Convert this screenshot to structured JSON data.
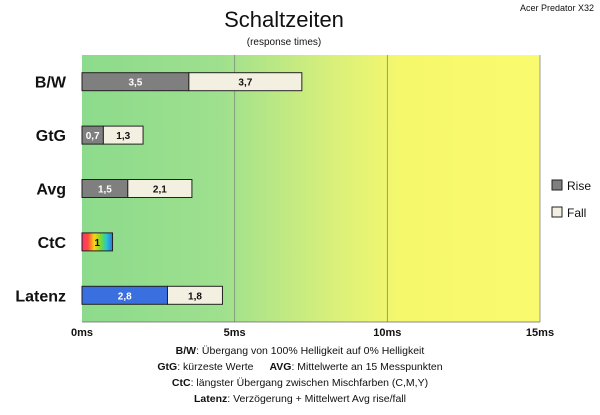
{
  "chart_data": {
    "type": "bar",
    "orientation": "horizontal",
    "stacked": true,
    "title": "Schaltzeiten",
    "subtitle": "(response times)",
    "brand": "Acer Predator X32",
    "categories": [
      "B/W",
      "GtG",
      "Avg",
      "CtC",
      "Latenz"
    ],
    "series": [
      {
        "name": "Rise",
        "values": [
          3.5,
          0.7,
          1.5,
          1,
          2.8
        ],
        "labels": [
          "3,5",
          "0,7",
          "1,5",
          "1",
          "2,8"
        ]
      },
      {
        "name": "Fall",
        "values": [
          3.7,
          1.3,
          2.1,
          null,
          1.8
        ],
        "labels": [
          "3,7",
          "1,3",
          "2,1",
          "",
          "1,8"
        ]
      }
    ],
    "xlim": [
      0,
      15
    ],
    "x_ticks": [
      0,
      5,
      10,
      15
    ],
    "x_tick_labels": [
      "0ms",
      "5ms",
      "10ms",
      "15ms"
    ],
    "background_gradient": "green to yellow",
    "legend_position": "right",
    "colors": {
      "rise": "#7f7f7f",
      "fall": "#f3efe1",
      "latenz_rise": "#3a6fe0",
      "bg_green": "#8fdc8f",
      "bg_yellow": "#f8f86a",
      "bar_border": "#222222"
    },
    "ctc_style": "rainbow"
  },
  "notes": [
    {
      "bold": "B/W",
      "text": ":  Übergang von 100% Helligkeit auf 0% Helligkeit"
    },
    {
      "bold": "GtG",
      "text": ": kürzeste  Werte",
      "bold2": "AVG",
      "text2": ": Mittelwerte  an 15 Messpunkten"
    },
    {
      "bold": "CtC",
      "text": ": längster Übergang  zwischen Mischfarben  (C,M,Y)"
    },
    {
      "bold": "Latenz",
      "text": ": Verzögerung  + Mittelwert Avg rise/fall"
    }
  ]
}
